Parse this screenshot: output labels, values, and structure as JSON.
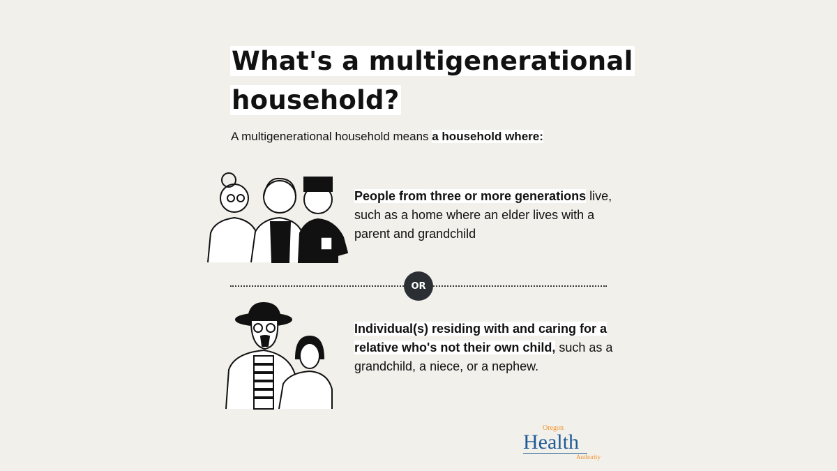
{
  "title": "What's a multigenerational household?",
  "intro": {
    "text": "A multigenerational household means ",
    "bold": "a household where:"
  },
  "option1": {
    "bold": "People from three or more generations",
    "text": " live, such as a home where an elder lives with a parent and grandchild"
  },
  "separator": "OR",
  "option2": {
    "bold": "Individual(s) residing with and caring for a relative who's not their own child,",
    "text": " such as a grandchild, a niece, or a nephew."
  },
  "logo": {
    "top": "Oregon",
    "main": "Health",
    "bottom": "Authority",
    "colors": {
      "blue": "#1e5a96",
      "orange": "#f0932b"
    }
  },
  "icons": [
    "three-generations-illustration",
    "adult-and-child-illustration"
  ]
}
